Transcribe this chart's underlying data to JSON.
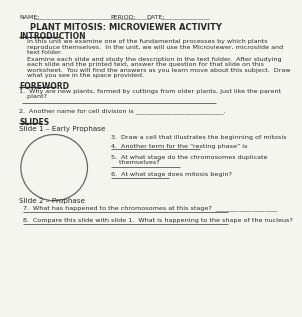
{
  "background_color": "#f5f5f0",
  "text_color": "#2a2a2a",
  "title": "PLANT MITOSIS: MICROVIEWER ACTIVITY",
  "intro_header": "INTRODUCTION",
  "intro_text1a": "In this unit we examine one of the fundamental processes by which plants",
  "intro_text1b": "reproduce themselves.  In the unit, we will use the Microviewer, microslide and",
  "intro_text1c": "text folder.",
  "intro_text2a": "Examine each slide and study the description in the text folder.  After studying",
  "intro_text2b": "each slide and the printed text, answer the question for that slide on this",
  "intro_text2c": "worksheet.  You will find the answers as you learn move about this subject.  Draw",
  "intro_text2d": "what you see in the space provided.",
  "foreword_header": "FOREWORD",
  "q1a": "1.  Why are new plants, formed by cuttings from older plants, just like the parent",
  "q1b": "    plant?",
  "q2": "2.  Another name for cell division is ___________________________.",
  "slides_header": "SLIDES",
  "slide1_header": "Slide 1 – Early Prophase",
  "q3": "3.  Draw a cell that illustrates the beginning of mitosis",
  "q4": "4.  Another term for the “resting phase” is",
  "q5a": "5.  At what stage do the chromosomes duplicate",
  "q5b": "    themselves?",
  "q6": "6.  At what stage does mitosis begin?",
  "slide2_header": "Slide 2 – Prophase",
  "q7": "7.  What has happened to the chromosomes at this stage?  ___________________",
  "q8": "8.  Compare this slide with slide 1.  What is happening to the shape of the nucleus?",
  "line_color": "#555555",
  "underline_color": "#333333"
}
